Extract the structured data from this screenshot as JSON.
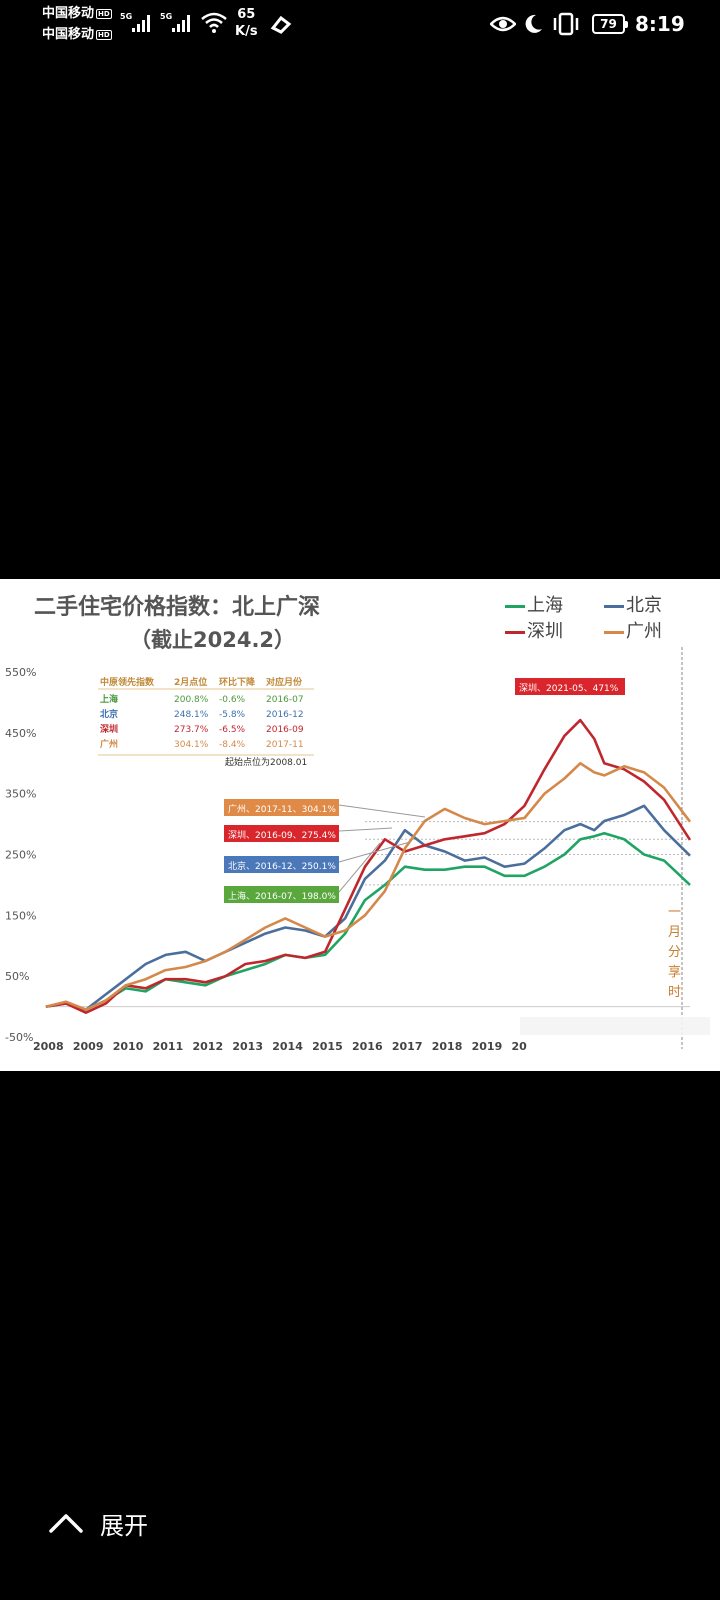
{
  "status_bar": {
    "carrier1": "中国移动",
    "carrier2": "中国移动",
    "hd_badge": "HD",
    "sig1_label": "5G",
    "sig2_label": "5G",
    "net_speed_value": "65",
    "net_speed_unit": "K/s",
    "battery": "79",
    "time": "8:19"
  },
  "chart": {
    "title": "二手住宅价格指数：北上广深",
    "subtitle": "（截止2024.2）",
    "legend": [
      {
        "name": "上海",
        "color": "#1fa463"
      },
      {
        "name": "北京",
        "color": "#4a6f9c"
      },
      {
        "name": "深圳",
        "color": "#c0272d"
      },
      {
        "name": "广州",
        "color": "#d4894a"
      }
    ],
    "table": {
      "headers": [
        "中原领先指数",
        "2月点位",
        "环比下降",
        "对应月份"
      ],
      "rows": [
        {
          "city": "上海",
          "value": "200.8%",
          "change": "-0.6%",
          "month": "2016-07",
          "color": "#4a9a3b"
        },
        {
          "city": "北京",
          "value": "248.1%",
          "change": "-5.8%",
          "month": "2016-12",
          "color": "#3f6fae"
        },
        {
          "city": "深圳",
          "value": "273.7%",
          "change": "-6.5%",
          "month": "2016-09",
          "color": "#c0272d"
        },
        {
          "city": "广州",
          "value": "304.1%",
          "change": "-8.4%",
          "month": "2017-11",
          "color": "#d4894a"
        }
      ],
      "note": "起始点位为2008.01"
    },
    "callouts": [
      {
        "text": "深圳、2021-05、471%",
        "color": "#d9262c"
      },
      {
        "text": "广州、2017-11、304.1%",
        "color": "#e08a47"
      },
      {
        "text": "深圳、2016-09、275.4%",
        "color": "#d9262c"
      },
      {
        "text": "北京、2016-12、250.1%",
        "color": "#4a78b8"
      },
      {
        "text": "上海、2016-07、198.0%",
        "color": "#5aa83d"
      }
    ],
    "side_note": "一月分享时"
  },
  "chart_data": {
    "type": "line",
    "title": "二手住宅价格指数：北上广深",
    "subtitle": "（截止2024.2）",
    "y_ticks": [
      "550%",
      "450%",
      "350%",
      "250%",
      "150%",
      "50%",
      "-50%"
    ],
    "x_ticks": [
      "2008",
      "2009",
      "2010",
      "2011",
      "2012",
      "2013",
      "2014",
      "2015",
      "2016",
      "2017",
      "2018",
      "2019",
      "20"
    ],
    "ylim": [
      -50,
      550
    ],
    "x": [
      2008.0,
      2008.5,
      2009.0,
      2009.5,
      2010.0,
      2010.5,
      2011.0,
      2011.5,
      2012.0,
      2012.5,
      2013.0,
      2013.5,
      2014.0,
      2014.5,
      2015.0,
      2015.5,
      2016.0,
      2016.5,
      2017.0,
      2017.5,
      2018.0,
      2018.5,
      2019.0,
      2019.5,
      2020.0,
      2020.5,
      2021.0,
      2021.4,
      2021.75,
      2022.0,
      2022.5,
      2023.0,
      2023.5,
      2024.15
    ],
    "series": [
      {
        "name": "上海",
        "color": "#1fa463",
        "values": [
          0,
          5,
          -5,
          10,
          30,
          25,
          45,
          40,
          35,
          50,
          60,
          70,
          85,
          80,
          85,
          120,
          175,
          200,
          230,
          225,
          225,
          230,
          230,
          215,
          215,
          230,
          250,
          275,
          280,
          285,
          275,
          250,
          240,
          200
        ]
      },
      {
        "name": "北京",
        "color": "#4a6f9c",
        "values": [
          0,
          5,
          -5,
          20,
          45,
          70,
          85,
          90,
          75,
          90,
          105,
          120,
          130,
          125,
          115,
          145,
          210,
          240,
          290,
          265,
          255,
          240,
          245,
          230,
          235,
          260,
          290,
          300,
          290,
          305,
          315,
          330,
          290,
          248
        ]
      },
      {
        "name": "深圳",
        "color": "#c0272d",
        "values": [
          0,
          5,
          -10,
          5,
          35,
          30,
          45,
          45,
          40,
          50,
          70,
          75,
          85,
          80,
          90,
          160,
          230,
          275,
          255,
          265,
          275,
          280,
          285,
          300,
          330,
          390,
          445,
          471,
          440,
          400,
          390,
          370,
          340,
          274
        ]
      },
      {
        "name": "广州",
        "color": "#d4894a",
        "values": [
          0,
          8,
          -5,
          10,
          35,
          45,
          60,
          65,
          75,
          90,
          110,
          130,
          145,
          130,
          115,
          125,
          150,
          190,
          260,
          305,
          325,
          310,
          300,
          305,
          310,
          350,
          375,
          400,
          385,
          380,
          395,
          385,
          360,
          304
        ]
      }
    ]
  },
  "bottom": {
    "expand_label": "展开"
  }
}
